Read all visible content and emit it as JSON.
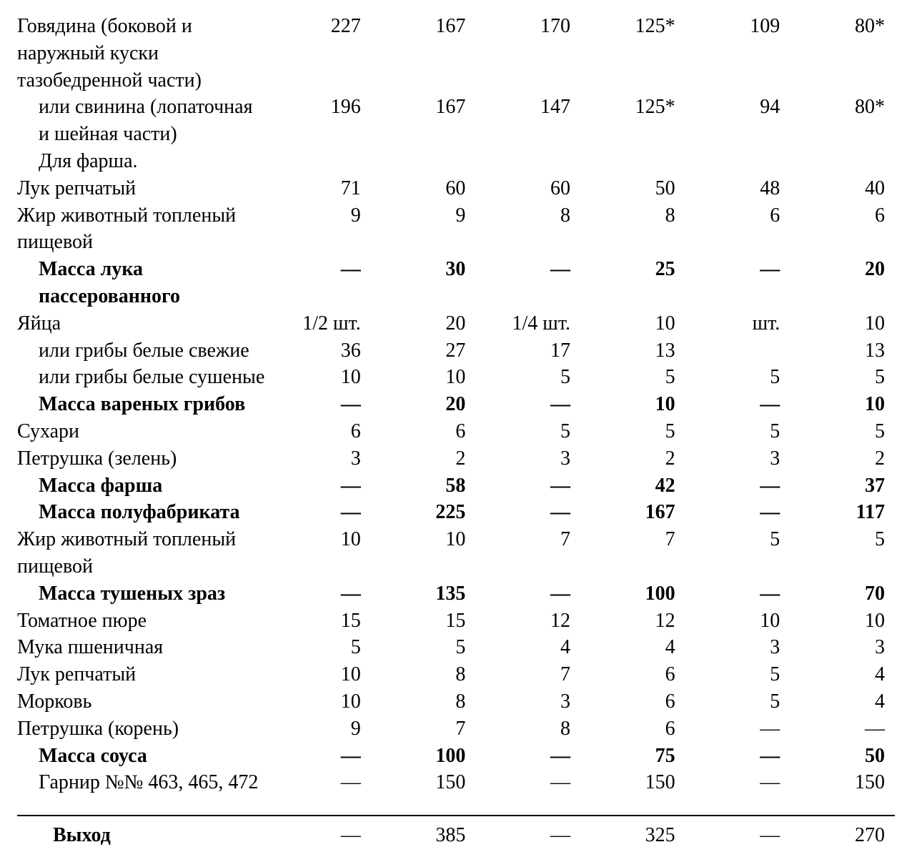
{
  "table": {
    "font_family": "Times New Roman",
    "font_size_pt": 21,
    "text_color": "#000000",
    "background_color": "#ffffff",
    "divider_color": "#000000",
    "column_widths_pct": [
      30,
      11.5,
      11.5,
      11.5,
      11.5,
      11.5,
      11.5
    ],
    "alignments": [
      "left",
      "right",
      "right",
      "right",
      "right",
      "right",
      "right"
    ],
    "rows": [
      {
        "label": "Говядина (боковой и наружный куски тазобедренной части)",
        "bold": false,
        "indent": 0,
        "c1": "227",
        "c2": "167",
        "c3": "170",
        "c4": "125*",
        "c5": "109",
        "c6": "80*"
      },
      {
        "label": "или свинина (лопаточная и шейная части)",
        "bold": false,
        "indent": 1,
        "c1": "196",
        "c2": "167",
        "c3": "147",
        "c4": "125*",
        "c5": "94",
        "c6": "80*"
      },
      {
        "label": "Для фарша.",
        "bold": false,
        "indent": 1,
        "c1": "",
        "c2": "",
        "c3": "",
        "c4": "",
        "c5": "",
        "c6": ""
      },
      {
        "label": "Лук репчатый",
        "bold": false,
        "indent": 0,
        "c1": "71",
        "c2": "60",
        "c3": "60",
        "c4": "50",
        "c5": "48",
        "c6": "40"
      },
      {
        "label": "Жир животный топленый пищевой",
        "bold": false,
        "indent": 0,
        "c1": "9",
        "c2": "9",
        "c3": "8",
        "c4": "8",
        "c5": "6",
        "c6": "6"
      },
      {
        "label": "Масса лука пассерованного",
        "bold": true,
        "indent": 1,
        "c1": "—",
        "c2": "30",
        "c3": "—",
        "c4": "25",
        "c5": "—",
        "c6": "20"
      },
      {
        "label": "Яйца",
        "bold": false,
        "indent": 0,
        "c1": "1/2 шт.",
        "c2": "20",
        "c3": "1/4 шт.",
        "c4": "10",
        "c5": "шт.",
        "c6": "10"
      },
      {
        "label": "или грибы белые свежие",
        "bold": false,
        "indent": 1,
        "c1": "36",
        "c2": "27",
        "c3": "17",
        "c4": "13",
        "c5": "",
        "c6": "13"
      },
      {
        "label": "или грибы белые сушеные",
        "bold": false,
        "indent": 1,
        "c1": "10",
        "c2": "10",
        "c3": "5",
        "c4": "5",
        "c5": "5",
        "c6": "5"
      },
      {
        "label": "Масса вареных грибов",
        "bold": true,
        "indent": 1,
        "c1": "—",
        "c2": "20",
        "c3": "—",
        "c4": "10",
        "c5": "—",
        "c6": "10"
      },
      {
        "label": "Сухари",
        "bold": false,
        "indent": 0,
        "c1": "6",
        "c2": "6",
        "c3": "5",
        "c4": "5",
        "c5": "5",
        "c6": "5"
      },
      {
        "label": "Петрушка (зелень)",
        "bold": false,
        "indent": 0,
        "c1": "3",
        "c2": "2",
        "c3": "3",
        "c4": "2",
        "c5": "3",
        "c6": "2"
      },
      {
        "label": "Масса фарша",
        "bold": true,
        "indent": 1,
        "c1": "—",
        "c2": "58",
        "c3": "—",
        "c4": "42",
        "c5": "—",
        "c6": "37"
      },
      {
        "label": "Масса полуфабриката",
        "bold": true,
        "indent": 1,
        "c1": "—",
        "c2": "225",
        "c3": "—",
        "c4": "167",
        "c5": "—",
        "c6": "117"
      },
      {
        "label": "Жир животный топленый пищевой",
        "bold": false,
        "indent": 0,
        "c1": "10",
        "c2": "10",
        "c3": "7",
        "c4": "7",
        "c5": "5",
        "c6": "5"
      },
      {
        "label": "Масса тушеных зраз",
        "bold": true,
        "indent": 1,
        "c1": "—",
        "c2": "135",
        "c3": "—",
        "c4": "100",
        "c5": "—",
        "c6": "70"
      },
      {
        "label": "Томатное пюре",
        "bold": false,
        "indent": 0,
        "c1": "15",
        "c2": "15",
        "c3": "12",
        "c4": "12",
        "c5": "10",
        "c6": "10"
      },
      {
        "label": "Мука пшеничная",
        "bold": false,
        "indent": 0,
        "c1": "5",
        "c2": "5",
        "c3": "4",
        "c4": "4",
        "c5": "3",
        "c6": "3"
      },
      {
        "label": "Лук репчатый",
        "bold": false,
        "indent": 0,
        "c1": "10",
        "c2": "8",
        "c3": "7",
        "c4": "6",
        "c5": "5",
        "c6": "4"
      },
      {
        "label": "Морковь",
        "bold": false,
        "indent": 0,
        "c1": "10",
        "c2": "8",
        "c3": "3",
        "c4": "6",
        "c5": "5",
        "c6": "4"
      },
      {
        "label": "Петрушка (корень)",
        "bold": false,
        "indent": 0,
        "c1": "9",
        "c2": "7",
        "c3": "8",
        "c4": "6",
        "c5": "—",
        "c6": "—"
      },
      {
        "label": "Масса соуса",
        "bold": true,
        "indent": 1,
        "c1": "—",
        "c2": "100",
        "c3": "—",
        "c4": "75",
        "c5": "—",
        "c6": "50"
      },
      {
        "label": "Гарнир №№ 463, 465, 472",
        "bold": false,
        "indent": 1,
        "c1": "—",
        "c2": "150",
        "c3": "—",
        "c4": "150",
        "c5": "—",
        "c6": "150"
      }
    ],
    "footer": {
      "label": "Выход",
      "c1": "—",
      "c2": "385",
      "c3": "—",
      "c4": "325",
      "c5": "—",
      "c6": "270"
    }
  }
}
